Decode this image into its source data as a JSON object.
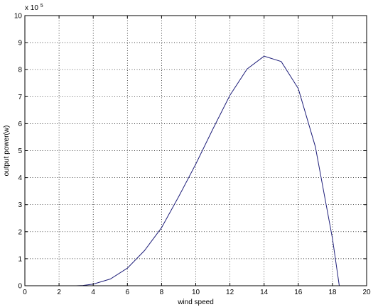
{
  "chart_data": {
    "type": "line",
    "title": "",
    "xlabel": "wind speed",
    "ylabel": "output power(w)",
    "y_exponent_label": "x 10",
    "y_exponent_power": "5",
    "xlim": [
      0,
      20
    ],
    "ylim": [
      0,
      10
    ],
    "xticks": [
      0,
      2,
      4,
      6,
      8,
      10,
      12,
      14,
      16,
      18,
      20
    ],
    "yticks": [
      0,
      1,
      2,
      3,
      4,
      5,
      6,
      7,
      8,
      9,
      10
    ],
    "grid": true,
    "series": [
      {
        "color": "#1f1f7a",
        "x": [
          0,
          1,
          2,
          3,
          3.4,
          4,
          5,
          6,
          7,
          8,
          9,
          10,
          11,
          12,
          13,
          14,
          15,
          16,
          17,
          18,
          18.4
        ],
        "y": [
          0,
          0,
          0,
          0,
          0.01,
          0.06,
          0.25,
          0.65,
          1.3,
          2.15,
          3.3,
          4.5,
          5.8,
          7.05,
          8.02,
          8.5,
          8.3,
          7.3,
          5.15,
          1.75,
          0
        ]
      }
    ]
  }
}
